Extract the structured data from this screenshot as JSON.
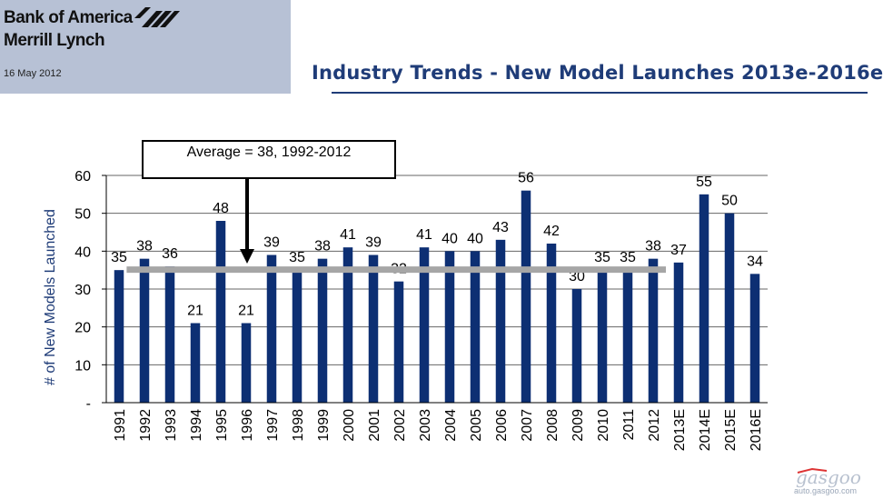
{
  "header": {
    "brand_line1": "Bank of America",
    "brand_line2": "Merrill Lynch",
    "logo_icon": "bank-of-america-flag-logo",
    "date": "16 May 2012"
  },
  "title": "Industry Trends - New Model Launches 2013e-2016e",
  "watermark": {
    "logo": "gasgoo",
    "text": "auto.gasgoo.com"
  },
  "colors": {
    "bar": "#0d2f73",
    "title": "#1f3c78",
    "average_line": "#a6a6a6",
    "header_bg": "#b7c1d5"
  },
  "chart_data": {
    "type": "bar",
    "categories": [
      "1991",
      "1992",
      "1993",
      "1994",
      "1995",
      "1996",
      "1997",
      "1998",
      "1999",
      "2000",
      "2001",
      "2002",
      "2003",
      "2004",
      "2005",
      "2006",
      "2007",
      "2008",
      "2009",
      "2010",
      "2011",
      "2012",
      "2013E",
      "2014E",
      "2015E",
      "2016E"
    ],
    "values": [
      35,
      38,
      36,
      21,
      48,
      21,
      39,
      35,
      38,
      41,
      39,
      32,
      41,
      40,
      40,
      43,
      56,
      42,
      30,
      35,
      35,
      38,
      37,
      55,
      50,
      34
    ],
    "ylabel": "# of New Models Launched",
    "ylim": [
      0,
      60
    ],
    "yticks": [
      "-",
      "10",
      "20",
      "30",
      "40",
      "50",
      "60"
    ],
    "grid": true,
    "average": {
      "value": 38,
      "label": "Average = 38, 1992-2012",
      "from": "1992",
      "to": "2012"
    }
  }
}
